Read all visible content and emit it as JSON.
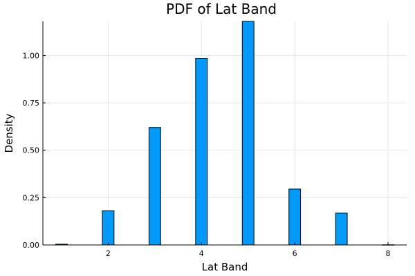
{
  "chart_data": {
    "type": "bar",
    "title": "PDF of Lat Band",
    "xlabel": "Lat Band",
    "ylabel": "Density",
    "xlim": [
      0.6,
      8.4
    ],
    "ylim": [
      0,
      1.18
    ],
    "xticks": [
      2,
      4,
      6,
      8
    ],
    "xtick_labels": [
      "2",
      "4",
      "6",
      "8"
    ],
    "yticks": [
      0,
      0.25,
      0.5,
      0.75,
      1.0
    ],
    "ytick_labels": [
      "0.00",
      "0.25",
      "0.50",
      "0.75",
      "1.00"
    ],
    "grid": true,
    "bar_color": "#009AFA",
    "bar_width": 0.25,
    "bars": [
      {
        "x": 1,
        "value": 0.004
      },
      {
        "x": 2,
        "value": 0.18
      },
      {
        "x": 3,
        "value": 0.62
      },
      {
        "x": 4,
        "value": 0.985
      },
      {
        "x": 5,
        "value": 1.18
      },
      {
        "x": 6,
        "value": 0.295
      },
      {
        "x": 7,
        "value": 0.168
      },
      {
        "x": 8,
        "value": 0.001
      }
    ]
  }
}
